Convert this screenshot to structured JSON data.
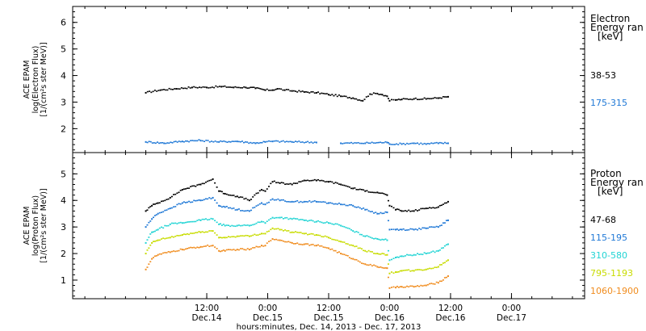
{
  "chart_data": [
    {
      "type": "scatter",
      "panel": "electron",
      "ylabel_lines": [
        "ACE EPAM",
        "log(Electron Flux)",
        "[1/(cm²s ster MeV)]"
      ],
      "yticks": [
        2,
        3,
        4,
        5,
        6
      ],
      "ylim": [
        1.1,
        6.6
      ],
      "legend_title_lines": [
        "Electron",
        "Energy ran",
        "[keV]"
      ],
      "grid": false,
      "legend_placement": "right",
      "series": [
        {
          "name": "38-53",
          "color": "#000000",
          "x": [
            0.0,
            0.12,
            0.25,
            0.38,
            0.5,
            0.62,
            0.72,
            0.82,
            0.9,
            0.98,
            1.04,
            1.08,
            1.14,
            1.2,
            1.3,
            1.4,
            1.5,
            1.6,
            1.7,
            1.78,
            1.84,
            1.9,
            1.94,
            1.98,
            2.0,
            2.05,
            2.1,
            2.2,
            2.3,
            2.4,
            2.48
          ],
          "y": [
            3.35,
            3.45,
            3.5,
            3.55,
            3.55,
            3.58,
            3.55,
            3.55,
            3.52,
            3.45,
            3.45,
            3.5,
            3.45,
            3.42,
            3.38,
            3.35,
            3.28,
            3.22,
            3.15,
            3.05,
            3.3,
            3.32,
            3.28,
            3.22,
            3.05,
            3.08,
            3.1,
            3.12,
            3.12,
            3.15,
            3.2
          ]
        },
        {
          "name": "175-315",
          "color": "#1f78d6",
          "x": [
            0.0,
            0.15,
            0.3,
            0.45,
            0.6,
            0.75,
            0.9,
            0.98,
            1.04,
            1.2,
            1.4,
            1.6,
            1.8,
            1.98,
            2.0,
            2.1,
            2.2,
            2.3,
            2.4,
            2.48
          ],
          "y": [
            1.5,
            1.45,
            1.52,
            1.55,
            1.5,
            1.52,
            1.45,
            1.5,
            1.52,
            1.5,
            1.48,
            1.45,
            1.45,
            1.48,
            1.42,
            1.42,
            1.45,
            1.42,
            1.45,
            1.45
          ]
        }
      ]
    },
    {
      "type": "scatter",
      "panel": "proton",
      "ylabel_lines": [
        "ACE EPAM",
        "log(Proton Flux)",
        "[1/(cm²s ster MeV)]"
      ],
      "yticks": [
        1,
        2,
        3,
        4,
        5
      ],
      "ylim": [
        0.3,
        5.8
      ],
      "legend_title_lines": [
        "Proton",
        "Energy ran",
        "[keV]"
      ],
      "grid": false,
      "legend_placement": "right",
      "series": [
        {
          "name": "47-68",
          "color": "#000000",
          "x": [
            0.0,
            0.05,
            0.1,
            0.2,
            0.3,
            0.45,
            0.55,
            0.6,
            0.65,
            0.75,
            0.85,
            0.95,
            0.98,
            1.04,
            1.1,
            1.2,
            1.3,
            1.4,
            1.5,
            1.6,
            1.7,
            1.8,
            1.9,
            1.98,
            2.0,
            2.05,
            2.1,
            2.2,
            2.3,
            2.4,
            2.48
          ],
          "y": [
            3.6,
            3.8,
            3.9,
            4.1,
            4.4,
            4.6,
            4.8,
            4.35,
            4.25,
            4.15,
            4.0,
            4.4,
            4.35,
            4.7,
            4.65,
            4.6,
            4.75,
            4.75,
            4.7,
            4.6,
            4.45,
            4.35,
            4.3,
            4.2,
            3.8,
            3.65,
            3.6,
            3.6,
            3.7,
            3.75,
            3.95
          ]
        },
        {
          "name": "115-195",
          "color": "#1f78d6",
          "x": [
            0.0,
            0.05,
            0.1,
            0.2,
            0.3,
            0.45,
            0.55,
            0.6,
            0.65,
            0.75,
            0.85,
            0.95,
            0.98,
            1.04,
            1.1,
            1.2,
            1.3,
            1.4,
            1.5,
            1.6,
            1.7,
            1.8,
            1.9,
            1.98,
            2.0,
            2.05,
            2.1,
            2.2,
            2.3,
            2.4,
            2.48
          ],
          "y": [
            3.0,
            3.3,
            3.5,
            3.7,
            3.9,
            4.0,
            4.1,
            3.8,
            3.75,
            3.65,
            3.6,
            3.9,
            3.85,
            4.05,
            4.0,
            3.95,
            3.95,
            3.95,
            3.9,
            3.85,
            3.8,
            3.65,
            3.5,
            3.55,
            2.9,
            2.9,
            2.9,
            2.9,
            2.95,
            3.0,
            3.25
          ]
        },
        {
          "name": "310-580",
          "color": "#22d4d4",
          "x": [
            0.0,
            0.05,
            0.1,
            0.2,
            0.3,
            0.45,
            0.55,
            0.6,
            0.65,
            0.75,
            0.85,
            0.95,
            0.98,
            1.04,
            1.1,
            1.2,
            1.3,
            1.4,
            1.5,
            1.6,
            1.7,
            1.8,
            1.9,
            1.98,
            2.0,
            2.05,
            2.1,
            2.2,
            2.3,
            2.4,
            2.48
          ],
          "y": [
            2.4,
            2.8,
            2.9,
            3.1,
            3.15,
            3.25,
            3.3,
            3.1,
            3.05,
            3.05,
            3.05,
            3.2,
            3.15,
            3.35,
            3.35,
            3.3,
            3.25,
            3.2,
            3.15,
            3.05,
            2.85,
            2.65,
            2.55,
            2.5,
            1.75,
            1.85,
            1.9,
            1.95,
            2.0,
            2.1,
            2.35
          ]
        },
        {
          "name": "795-1193",
          "color": "#c8dc00",
          "x": [
            0.0,
            0.05,
            0.1,
            0.2,
            0.3,
            0.45,
            0.55,
            0.6,
            0.65,
            0.75,
            0.85,
            0.95,
            0.98,
            1.04,
            1.1,
            1.2,
            1.3,
            1.4,
            1.5,
            1.6,
            1.7,
            1.8,
            1.9,
            1.98,
            2.0,
            2.05,
            2.1,
            2.2,
            2.3,
            2.4,
            2.48
          ],
          "y": [
            2.0,
            2.4,
            2.5,
            2.6,
            2.7,
            2.8,
            2.85,
            2.6,
            2.6,
            2.65,
            2.65,
            2.75,
            2.75,
            2.95,
            2.9,
            2.8,
            2.75,
            2.7,
            2.6,
            2.45,
            2.3,
            2.1,
            2.0,
            1.95,
            1.25,
            1.3,
            1.35,
            1.35,
            1.4,
            1.5,
            1.75
          ]
        },
        {
          "name": "1060-1900",
          "color": "#f08c1e",
          "x": [
            0.0,
            0.05,
            0.1,
            0.2,
            0.3,
            0.45,
            0.55,
            0.6,
            0.65,
            0.75,
            0.85,
            0.95,
            0.98,
            1.04,
            1.1,
            1.2,
            1.3,
            1.4,
            1.5,
            1.6,
            1.7,
            1.8,
            1.9,
            1.98,
            2.0,
            2.05,
            2.1,
            2.2,
            2.3,
            2.4,
            2.48
          ],
          "y": [
            1.4,
            1.8,
            1.95,
            2.05,
            2.15,
            2.25,
            2.3,
            2.1,
            2.1,
            2.15,
            2.15,
            2.3,
            2.3,
            2.55,
            2.5,
            2.4,
            2.35,
            2.3,
            2.2,
            2.0,
            1.8,
            1.6,
            1.5,
            1.45,
            0.7,
            0.72,
            0.75,
            0.75,
            0.8,
            0.9,
            1.15
          ]
        }
      ]
    }
  ],
  "x_axis": {
    "xlim": [
      -0.6,
      3.6
    ],
    "ticks": [
      {
        "value": 0.5,
        "time": "12:00",
        "day": "Dec.14"
      },
      {
        "value": 1.0,
        "time": "0:00",
        "day": "Dec.15"
      },
      {
        "value": 1.5,
        "time": "12:00",
        "day": "Dec.15"
      },
      {
        "value": 2.0,
        "time": "0:00",
        "day": "Dec.16"
      },
      {
        "value": 2.5,
        "time": "12:00",
        "day": "Dec.16"
      },
      {
        "value": 3.0,
        "time": "0:00",
        "day": "Dec.17"
      }
    ],
    "xlabel": "hours:minutes, Dec. 14, 2013 - Dec. 17, 2013"
  }
}
